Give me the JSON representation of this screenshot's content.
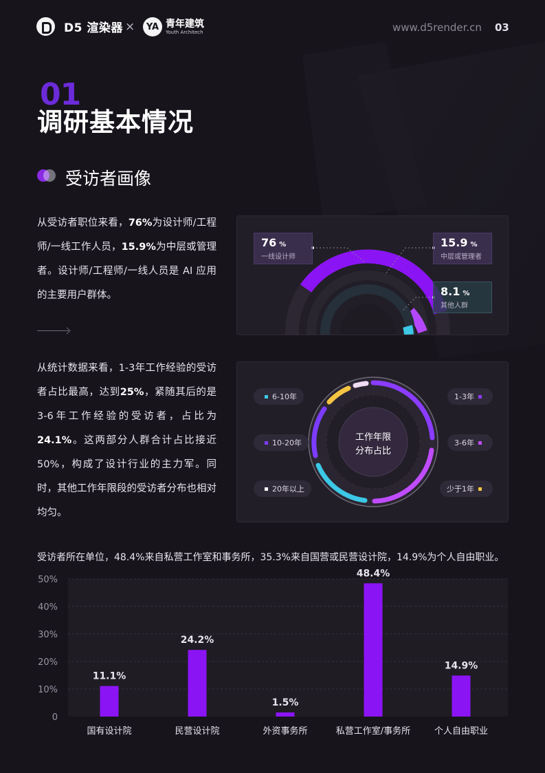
{
  "header": {
    "d5_logo_text": "D5 渲染器",
    "times": "×",
    "ya_logo_glyph": "YA",
    "ya_logo_cn": "青年建筑",
    "ya_logo_en": "Youth Architech",
    "site": "www.d5render.cn",
    "page_number": "03"
  },
  "section": {
    "number": "01",
    "title": "调研基本情况",
    "subtitle": "受访者画像"
  },
  "paragraph1": {
    "p1": "从受访者职位来看，",
    "b1": "76%",
    "p2": "为设计师/工程师/一线工作人员，",
    "b2": "15.9%",
    "p3": "为中层或管理者。设计师/工程师/一线人员是 AI 应用的主要用户群体。"
  },
  "paragraph2": {
    "p1": "从统计数据来看，1-3年工作经验的受访者占比最高，达到",
    "b1": "25%",
    "p2": "，紧随其后的是3-6年工作经验的受访者，占比为",
    "b2": "24.1%",
    "p3": "。这两部分人群合计占比接近50%，构成了设计行业的主力军。同时，其他工作年限段的受访者分布也相对均匀。"
  },
  "position_chart": {
    "items": [
      {
        "value": "76",
        "unit": "%",
        "label": "一线设计师"
      },
      {
        "value": "15.9",
        "unit": "%",
        "label": "中层或管理者"
      },
      {
        "value": "8.1",
        "unit": "%",
        "label": "其他人群"
      }
    ]
  },
  "tenure_chart": {
    "center_line1": "工作年限",
    "center_line2": "分布占比",
    "labels": [
      "6-10年",
      "10-20年",
      "20年以上",
      "1-3年",
      "3-6年",
      "少于1年"
    ],
    "colors": {
      "6-10年": "#3cc8e6",
      "10-20年": "#7c3cff",
      "20年以上": "#ffffff",
      "1-3年": "#8a3cff",
      "3-6年": "#c04cff",
      "少于1年": "#f5c542"
    }
  },
  "bar_caption": "受访者所在单位，48.4%来自私营工作室和事务所，35.3%来自国营或民营设计院，14.9%为个人自由职业。",
  "chart_data": {
    "type": "bar",
    "categories": [
      "国有设计院",
      "民营设计院",
      "外资事务所",
      "私营工作室/事务所",
      "个人自由职业"
    ],
    "values": [
      11.1,
      24.2,
      1.5,
      48.4,
      14.9
    ],
    "value_labels": [
      "11.1%",
      "24.2%",
      "1.5%",
      "48.4%",
      "14.9%"
    ],
    "yticks": [
      "0",
      "10%",
      "20%",
      "30%",
      "40%",
      "50%"
    ],
    "ylim": [
      0,
      50
    ],
    "bar_color": "#8b14f5",
    "grid": true
  }
}
